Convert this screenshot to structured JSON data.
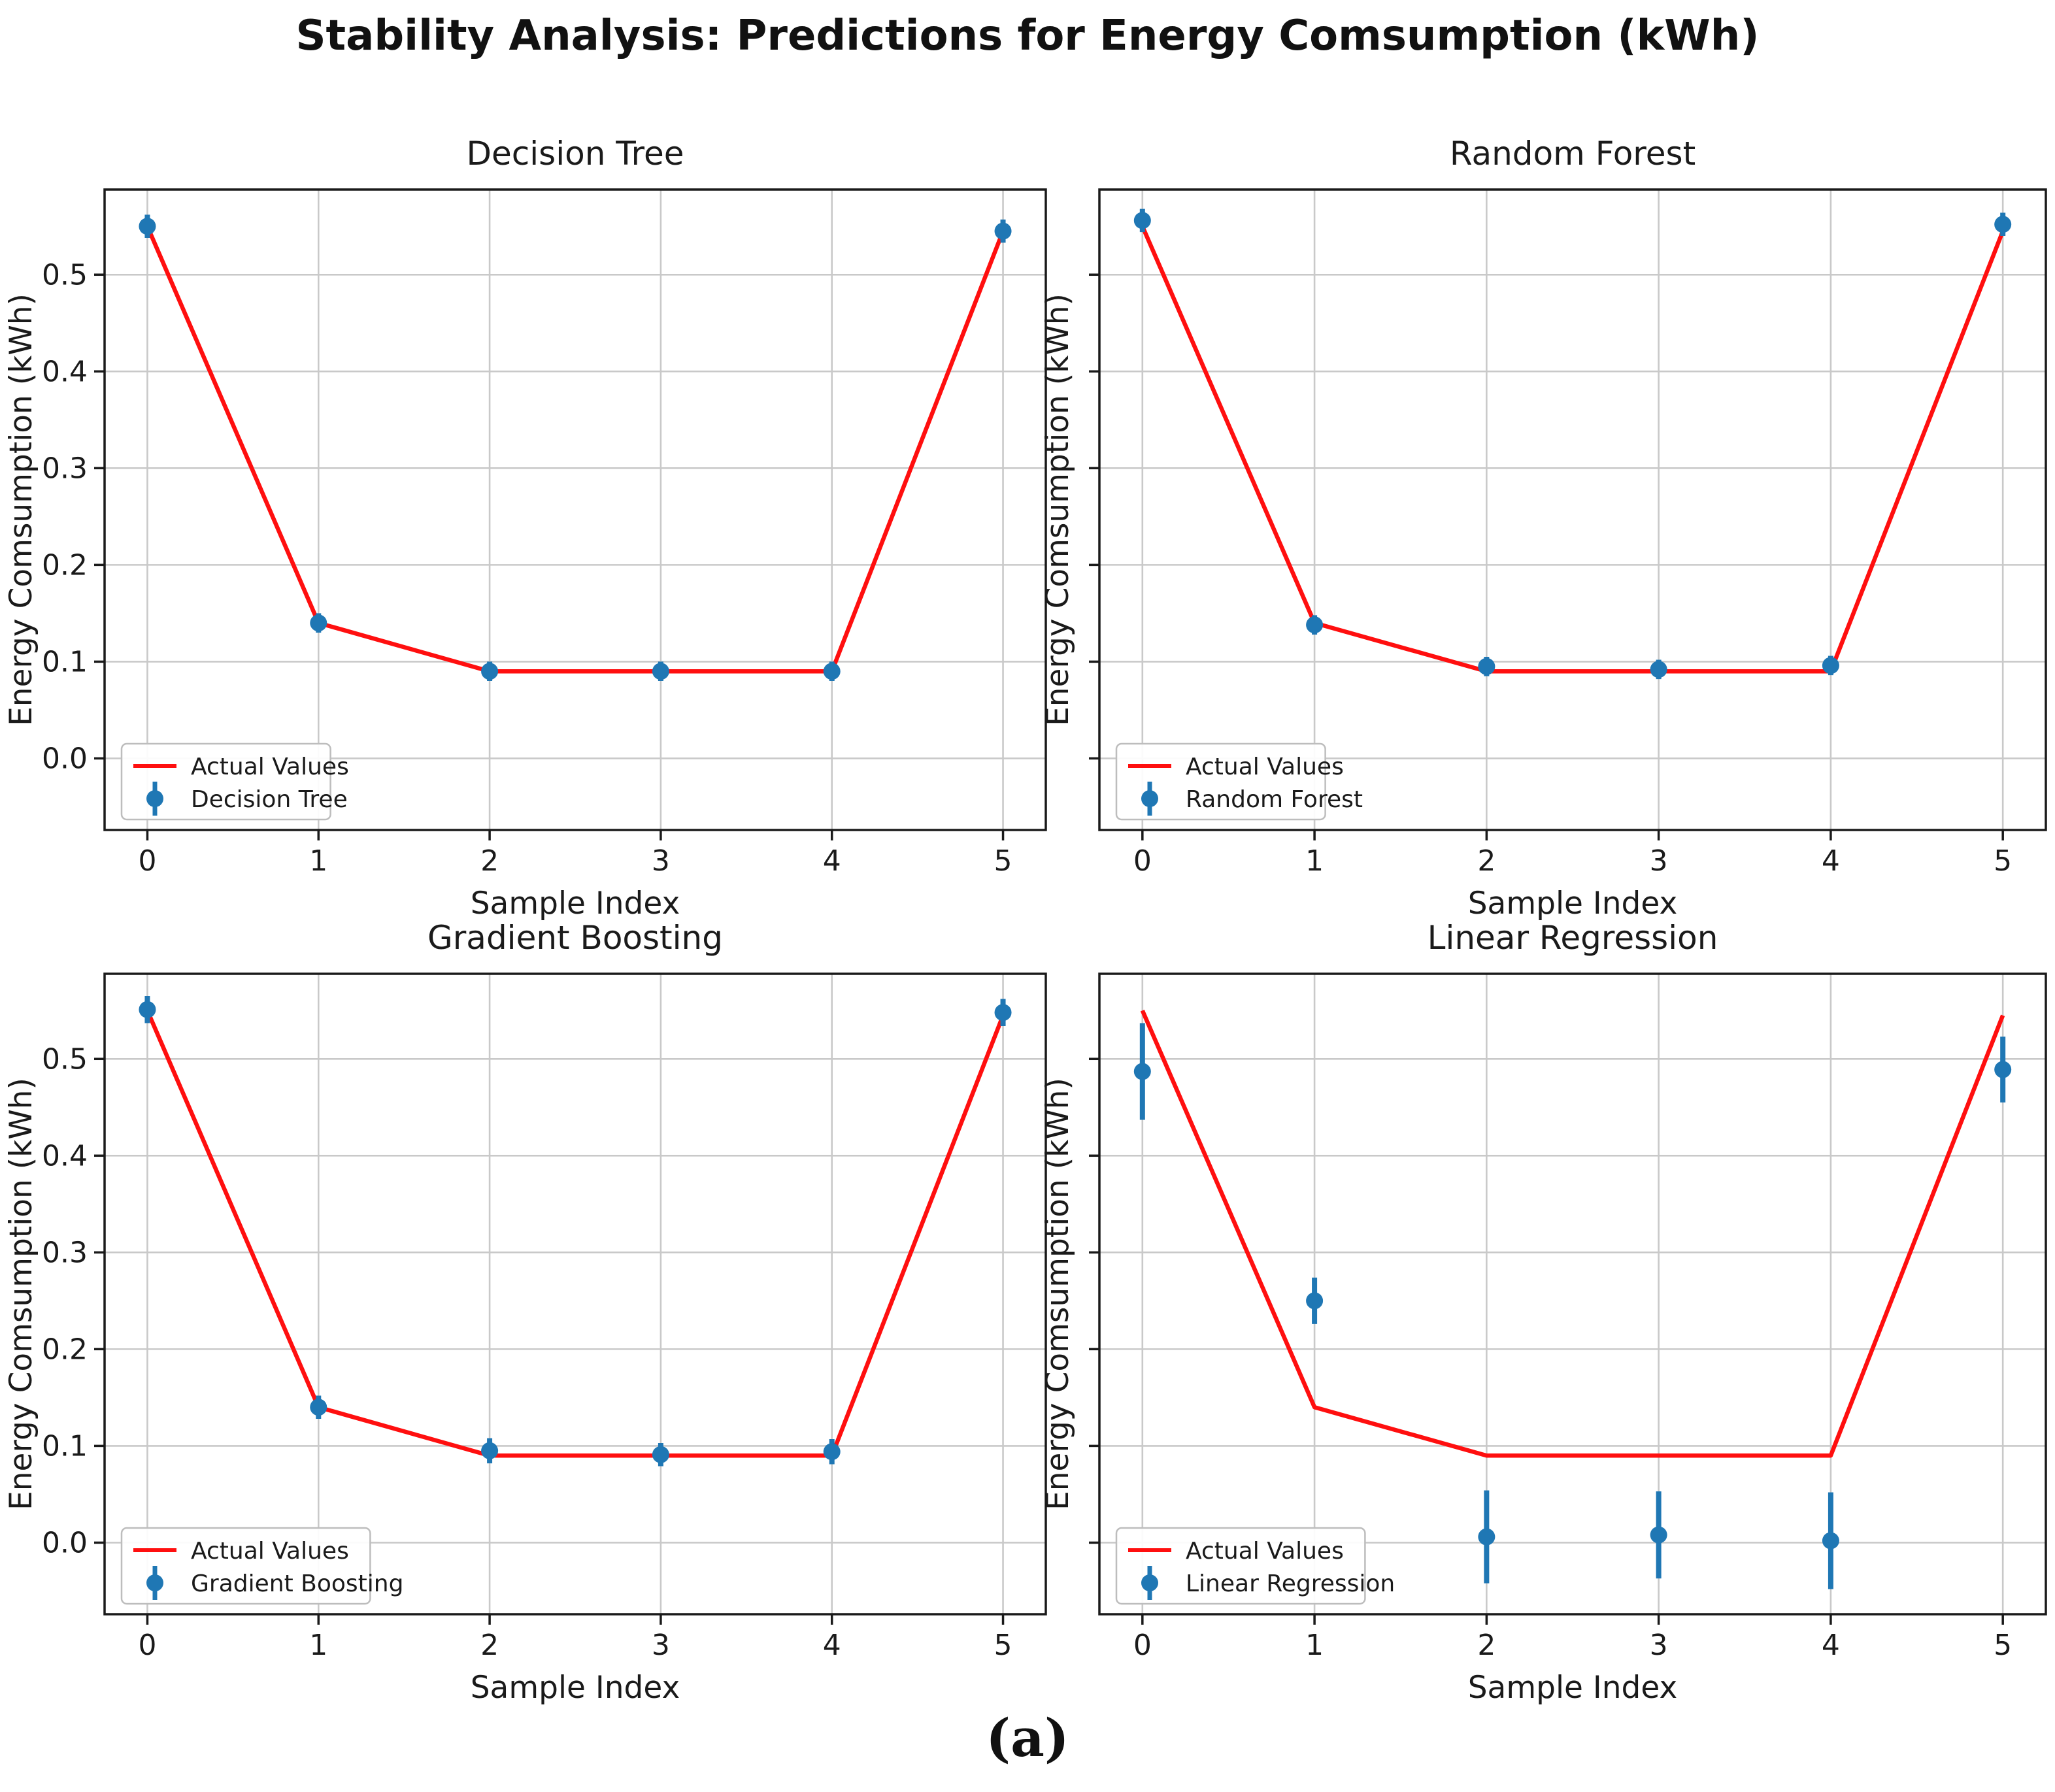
{
  "figure": {
    "suptitle": "Stability Analysis: Predictions for Energy Comsumption (kWh)",
    "caption": "(a)",
    "background": "#ffffff",
    "grid_layout": "2x2"
  },
  "colors": {
    "actual_line": "#ff0f0f",
    "prediction": "#1f77b4",
    "grid": "#c9c9c9",
    "spine": "#1a1a1a",
    "tick_text": "#1a1a1a",
    "legend_border": "#bdbdbd",
    "legend_background": "#ffffff"
  },
  "chart_data": [
    {
      "type": "line+errorbar",
      "title": "Decision Tree",
      "xlabel": "Sample Index",
      "ylabel": "Energy Comsumption (kWh)",
      "x": [
        0,
        1,
        2,
        3,
        4,
        5
      ],
      "series": [
        {
          "name": "Actual Values",
          "kind": "line",
          "values": [
            0.55,
            0.14,
            0.09,
            0.09,
            0.09,
            0.545
          ]
        },
        {
          "name": "Decision Tree",
          "kind": "scatter-errorbar",
          "values": [
            0.55,
            0.14,
            0.09,
            0.09,
            0.09,
            0.545
          ],
          "errors": [
            0.012,
            0.01,
            0.01,
            0.01,
            0.01,
            0.012
          ]
        }
      ],
      "xticks": [
        0,
        1,
        2,
        3,
        4,
        5
      ],
      "xticklabels": [
        "0",
        "1",
        "2",
        "3",
        "4",
        "5"
      ],
      "yticks": [
        0.0,
        0.1,
        0.2,
        0.3,
        0.4,
        0.5
      ],
      "yticklabels": [
        "0.0",
        "0.1",
        "0.2",
        "0.3",
        "0.4",
        "0.5"
      ],
      "show_ytick_labels": true,
      "xlim": [
        -0.25,
        5.25
      ],
      "ylim": [
        -0.074,
        0.588
      ],
      "grid": true,
      "legend_loc": "lower left",
      "legend": [
        "Actual Values",
        "Decision Tree"
      ]
    },
    {
      "type": "line+errorbar",
      "title": "Random Forest",
      "xlabel": "Sample Index",
      "ylabel": "Energy Comsumption (kWh)",
      "x": [
        0,
        1,
        2,
        3,
        4,
        5
      ],
      "series": [
        {
          "name": "Actual Values",
          "kind": "line",
          "values": [
            0.55,
            0.14,
            0.09,
            0.09,
            0.09,
            0.545
          ]
        },
        {
          "name": "Random Forest",
          "kind": "scatter-errorbar",
          "values": [
            0.556,
            0.138,
            0.095,
            0.092,
            0.096,
            0.552
          ],
          "errors": [
            0.012,
            0.01,
            0.01,
            0.01,
            0.01,
            0.012
          ]
        }
      ],
      "xticks": [
        0,
        1,
        2,
        3,
        4,
        5
      ],
      "xticklabels": [
        "0",
        "1",
        "2",
        "3",
        "4",
        "5"
      ],
      "yticks": [
        0.0,
        0.1,
        0.2,
        0.3,
        0.4,
        0.5
      ],
      "yticklabels": [
        "0.0",
        "0.1",
        "0.2",
        "0.3",
        "0.4",
        "0.5"
      ],
      "show_ytick_labels": false,
      "xlim": [
        -0.25,
        5.25
      ],
      "ylim": [
        -0.074,
        0.588
      ],
      "grid": true,
      "legend_loc": "lower left",
      "legend": [
        "Actual Values",
        "Random Forest"
      ]
    },
    {
      "type": "line+errorbar",
      "title": "Gradient Boosting",
      "xlabel": "Sample Index",
      "ylabel": "Energy Comsumption (kWh)",
      "x": [
        0,
        1,
        2,
        3,
        4,
        5
      ],
      "series": [
        {
          "name": "Actual Values",
          "kind": "line",
          "values": [
            0.55,
            0.14,
            0.09,
            0.09,
            0.09,
            0.545
          ]
        },
        {
          "name": "Gradient Boosting",
          "kind": "scatter-errorbar",
          "values": [
            0.551,
            0.14,
            0.095,
            0.091,
            0.094,
            0.548
          ],
          "errors": [
            0.014,
            0.012,
            0.013,
            0.012,
            0.013,
            0.014
          ]
        }
      ],
      "xticks": [
        0,
        1,
        2,
        3,
        4,
        5
      ],
      "xticklabels": [
        "0",
        "1",
        "2",
        "3",
        "4",
        "5"
      ],
      "yticks": [
        0.0,
        0.1,
        0.2,
        0.3,
        0.4,
        0.5
      ],
      "yticklabels": [
        "0.0",
        "0.1",
        "0.2",
        "0.3",
        "0.4",
        "0.5"
      ],
      "show_ytick_labels": true,
      "xlim": [
        -0.25,
        5.25
      ],
      "ylim": [
        -0.074,
        0.588
      ],
      "grid": true,
      "legend_loc": "lower left",
      "legend": [
        "Actual Values",
        "Gradient Boosting"
      ]
    },
    {
      "type": "line+errorbar",
      "title": "Linear Regression",
      "xlabel": "Sample Index",
      "ylabel": "Energy Comsumption (kWh)",
      "x": [
        0,
        1,
        2,
        3,
        4,
        5
      ],
      "series": [
        {
          "name": "Actual Values",
          "kind": "line",
          "values": [
            0.55,
            0.14,
            0.09,
            0.09,
            0.09,
            0.545
          ]
        },
        {
          "name": "Linear Regression",
          "kind": "scatter-errorbar",
          "values": [
            0.487,
            0.25,
            0.006,
            0.008,
            0.002,
            0.489
          ],
          "errors": [
            0.05,
            0.024,
            0.048,
            0.045,
            0.05,
            0.034
          ]
        }
      ],
      "xticks": [
        0,
        1,
        2,
        3,
        4,
        5
      ],
      "xticklabels": [
        "0",
        "1",
        "2",
        "3",
        "4",
        "5"
      ],
      "yticks": [
        0.0,
        0.1,
        0.2,
        0.3,
        0.4,
        0.5
      ],
      "yticklabels": [
        "0.0",
        "0.1",
        "0.2",
        "0.3",
        "0.4",
        "0.5"
      ],
      "show_ytick_labels": false,
      "xlim": [
        -0.25,
        5.25
      ],
      "ylim": [
        -0.074,
        0.588
      ],
      "grid": true,
      "legend_loc": "lower left",
      "legend": [
        "Actual Values",
        "Linear Regression"
      ]
    }
  ]
}
